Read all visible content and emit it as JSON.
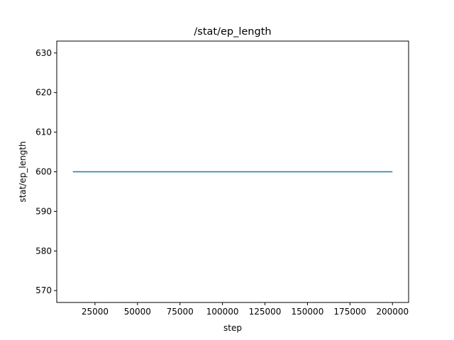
{
  "chart_data": {
    "type": "line",
    "title": "/stat/ep_length",
    "xlabel": "step",
    "ylabel": "stat/ep_length",
    "xlim": [
      2500,
      209500
    ],
    "ylim": [
      567,
      633
    ],
    "xticks": [
      25000,
      50000,
      75000,
      100000,
      125000,
      150000,
      175000,
      200000
    ],
    "yticks": [
      570,
      580,
      590,
      600,
      610,
      620,
      630
    ],
    "grid": false,
    "series": [
      {
        "color": "#1f77b4",
        "x": [
          12000,
          200000
        ],
        "y": [
          600,
          600
        ]
      }
    ]
  }
}
